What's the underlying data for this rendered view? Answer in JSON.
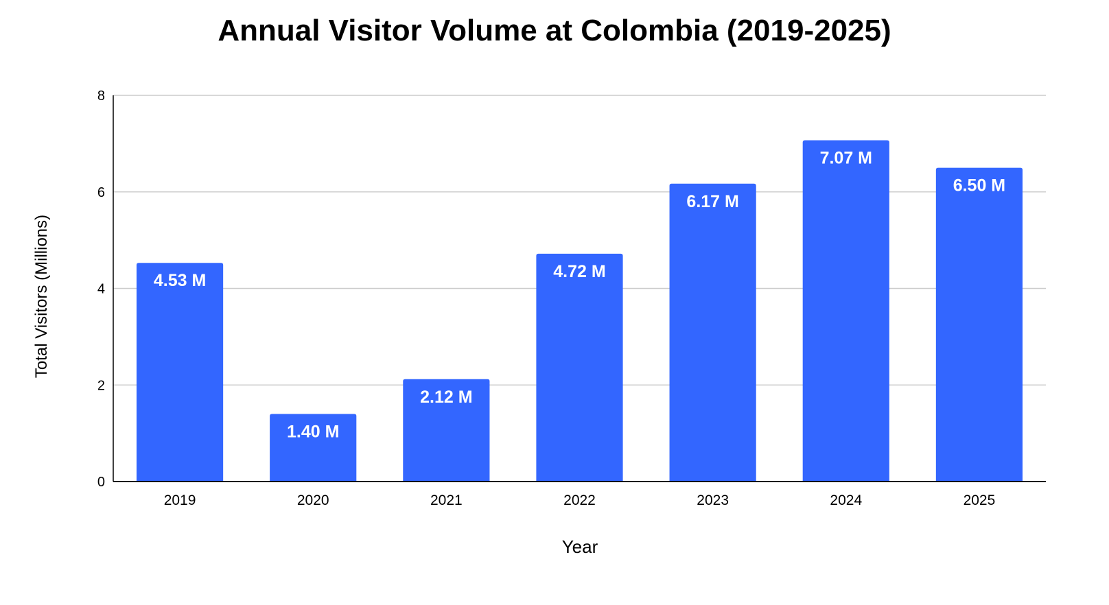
{
  "chart_data": {
    "type": "bar",
    "title": "Annual Visitor Volume at Colombia (2019-2025)",
    "xlabel": "Year",
    "ylabel": "Total Visitors (Millions)",
    "categories": [
      "2019",
      "2020",
      "2021",
      "2022",
      "2023",
      "2024",
      "2025"
    ],
    "values": [
      4.53,
      1.4,
      2.12,
      4.72,
      6.17,
      7.07,
      6.5
    ],
    "data_labels": [
      "4.53 M",
      "1.40 M",
      "2.12 M",
      "4.72 M",
      "6.17 M",
      "7.07 M",
      "6.50 M"
    ],
    "ylim": [
      0,
      8
    ],
    "yticks": [
      0,
      2,
      4,
      6,
      8
    ],
    "ytick_labels": [
      "0",
      "2",
      "4",
      "6",
      "8"
    ],
    "grid": true,
    "legend": "none",
    "colors": {
      "bar": "#3366ff",
      "grid": "#cccccc",
      "axis": "#000000",
      "label_text": "#ffffff",
      "text": "#000000"
    }
  }
}
